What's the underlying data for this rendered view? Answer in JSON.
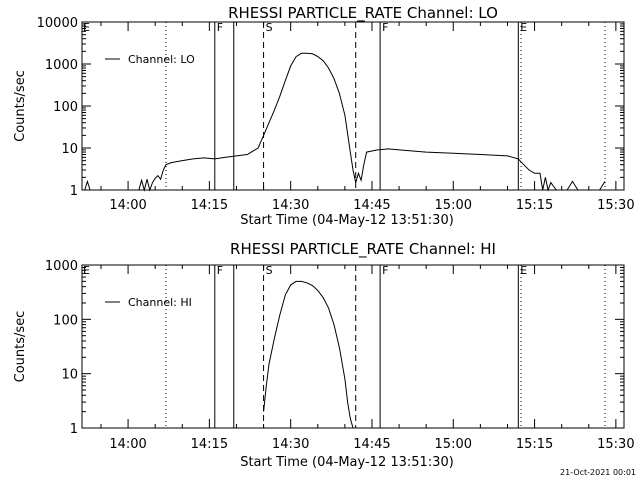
{
  "footer": {
    "timestamp": "21-Oct-2021 00:01"
  },
  "chart_data": [
    {
      "type": "line",
      "title": "RHESSI PARTICLE_RATE Channel: LO",
      "xlabel": "Start Time (04-May-12 13:51:30)",
      "ylabel": "Counts/sec",
      "yscale": "log",
      "xlim": [
        "13:51:30",
        "15:31:30"
      ],
      "ylim": [
        1,
        10000
      ],
      "x_tick_labels": [
        "14:00",
        "14:15",
        "14:30",
        "14:45",
        "15:00",
        "15:15",
        "15:30"
      ],
      "x_ticks": [
        "14:00",
        "14:15",
        "14:30",
        "14:45",
        "15:00",
        "15:15",
        "15:30"
      ],
      "y_ticks": [
        1,
        10,
        100,
        1000,
        10000
      ],
      "y_tick_labels": [
        "1",
        "10",
        "100",
        "1000",
        "10000"
      ],
      "legend": {
        "position": "top-left",
        "entries": [
          "Channel: LO"
        ]
      },
      "markers": [
        {
          "time": "14:16:00",
          "style": "solid",
          "label": "F"
        },
        {
          "time": "14:19:30",
          "style": "solid",
          "label": ""
        },
        {
          "time": "14:25:00",
          "style": "dashed",
          "label": "S"
        },
        {
          "time": "14:42:00",
          "style": "dashed",
          "label": ""
        },
        {
          "time": "14:46:30",
          "style": "solid",
          "label": "F"
        },
        {
          "time": "15:12:00",
          "style": "solid",
          "label": "E"
        },
        {
          "time": "15:12:30",
          "style": "dotted",
          "label": ""
        },
        {
          "time": "14:07:00",
          "style": "dotted",
          "label": ""
        },
        {
          "time": "15:28:00",
          "style": "dotted",
          "label": ""
        }
      ],
      "corner_letters": {
        "left": "E"
      },
      "series": [
        {
          "name": "Channel: LO",
          "x": [
            "13:51:30",
            "13:52:00",
            "13:52:30",
            "13:53:00",
            "13:53:30",
            "14:02:00",
            "14:02:30",
            "14:03:00",
            "14:03:30",
            "14:04:00",
            "14:04:30",
            "14:05:00",
            "14:05:30",
            "14:06:00",
            "14:06:30",
            "14:07:00",
            "14:08:00",
            "14:10:00",
            "14:12:00",
            "14:14:00",
            "14:16:00",
            "14:18:00",
            "14:20:00",
            "14:22:00",
            "14:24:00",
            "14:25:00",
            "14:26:00",
            "14:27:00",
            "14:28:00",
            "14:29:00",
            "14:30:00",
            "14:31:00",
            "14:32:00",
            "14:33:00",
            "14:34:00",
            "14:35:00",
            "14:36:00",
            "14:37:00",
            "14:38:00",
            "14:39:00",
            "14:40:00",
            "14:41:00",
            "14:41:30",
            "14:42:00",
            "14:42:30",
            "14:43:00",
            "14:43:30",
            "14:44:00",
            "14:46:00",
            "14:48:00",
            "14:50:00",
            "14:55:00",
            "15:00:00",
            "15:05:00",
            "15:10:00",
            "15:12:00",
            "15:13:00",
            "15:14:00",
            "15:15:00",
            "15:16:00",
            "15:16:30",
            "15:17:00",
            "15:17:30",
            "15:18:00",
            "15:19:00",
            "15:20:00",
            "15:21:00",
            "15:22:00",
            "15:23:00",
            "15:24:00",
            "15:25:00",
            "15:26:00",
            "15:27:00",
            "15:28:00"
          ],
          "values": [
            1,
            1,
            1.6,
            1,
            1,
            1,
            1.7,
            1,
            1.8,
            1,
            1.5,
            1.9,
            2.2,
            1.8,
            3,
            4,
            4.5,
            5,
            5.5,
            5.8,
            5.5,
            6,
            6.5,
            7,
            10,
            20,
            40,
            80,
            170,
            400,
            900,
            1500,
            1800,
            1800,
            1750,
            1500,
            1200,
            800,
            450,
            200,
            60,
            8,
            3,
            1.5,
            2.5,
            1.7,
            4,
            8,
            9,
            9.5,
            9,
            8,
            7.5,
            7,
            6.5,
            5.5,
            4,
            3,
            2.5,
            2.5,
            1,
            2,
            1,
            1.5,
            1,
            1,
            1,
            1.6,
            1,
            1,
            1,
            1,
            1,
            1.6
          ]
        }
      ]
    },
    {
      "type": "line",
      "title": "RHESSI PARTICLE_RATE Channel: HI",
      "xlabel": "Start Time (04-May-12 13:51:30)",
      "ylabel": "Counts/sec",
      "yscale": "log",
      "xlim": [
        "13:51:30",
        "15:31:30"
      ],
      "ylim": [
        1,
        1000
      ],
      "x_tick_labels": [
        "14:00",
        "14:15",
        "14:30",
        "14:45",
        "15:00",
        "15:15",
        "15:30"
      ],
      "x_ticks": [
        "14:00",
        "14:15",
        "14:30",
        "14:45",
        "15:00",
        "15:15",
        "15:30"
      ],
      "y_ticks": [
        1,
        10,
        100,
        1000
      ],
      "y_tick_labels": [
        "1",
        "10",
        "100",
        "1000"
      ],
      "legend": {
        "position": "top-left",
        "entries": [
          "Channel: HI"
        ]
      },
      "markers": [
        {
          "time": "14:16:00",
          "style": "solid",
          "label": "F"
        },
        {
          "time": "14:19:30",
          "style": "solid",
          "label": ""
        },
        {
          "time": "14:25:00",
          "style": "dashed",
          "label": "S"
        },
        {
          "time": "14:42:00",
          "style": "dashed",
          "label": ""
        },
        {
          "time": "14:46:30",
          "style": "solid",
          "label": "F"
        },
        {
          "time": "15:12:00",
          "style": "solid",
          "label": "E"
        },
        {
          "time": "15:12:30",
          "style": "dotted",
          "label": ""
        },
        {
          "time": "14:07:00",
          "style": "dotted",
          "label": ""
        },
        {
          "time": "15:28:00",
          "style": "dotted",
          "label": ""
        }
      ],
      "corner_letters": {
        "left": "E"
      },
      "series": [
        {
          "name": "Channel: HI",
          "x": [
            "14:25:00",
            "14:25:30",
            "14:26:00",
            "14:27:00",
            "14:28:00",
            "14:29:00",
            "14:30:00",
            "14:31:00",
            "14:32:00",
            "14:33:00",
            "14:34:00",
            "14:35:00",
            "14:36:00",
            "14:37:00",
            "14:38:00",
            "14:39:00",
            "14:40:00",
            "14:40:30",
            "14:41:00",
            "14:41:30"
          ],
          "values": [
            2,
            6,
            15,
            45,
            120,
            280,
            430,
            500,
            500,
            470,
            420,
            340,
            250,
            160,
            80,
            30,
            8,
            3,
            1.5,
            1
          ]
        }
      ]
    }
  ]
}
